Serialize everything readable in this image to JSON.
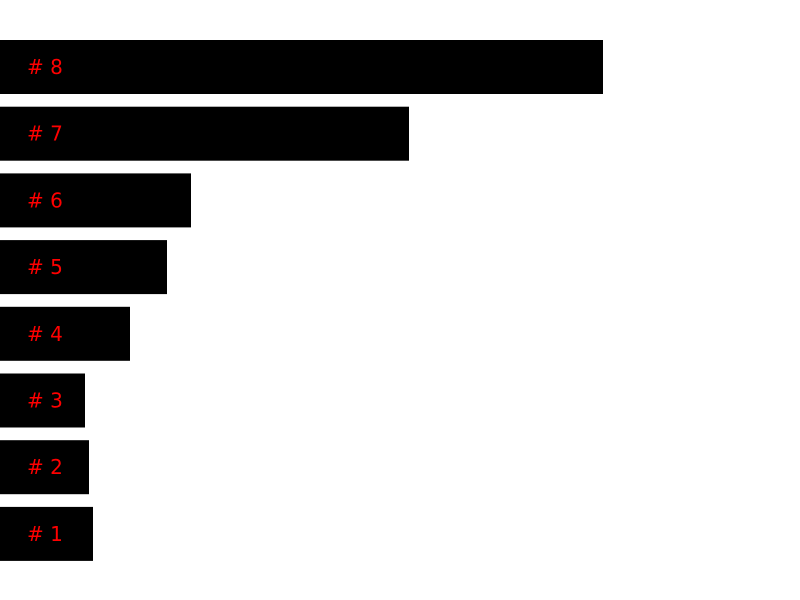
{
  "chart_data": {
    "type": "bar",
    "orientation": "horizontal",
    "categories": [
      "# 8",
      "# 7",
      "# 6",
      "# 5",
      "# 4",
      "# 3",
      "# 2",
      "# 1"
    ],
    "values": [
      603,
      409,
      191,
      167,
      130,
      85,
      89,
      93
    ],
    "title": "",
    "xlabel": "",
    "ylabel": "",
    "xlim": [
      0,
      800
    ],
    "grid": false,
    "legend": "none",
    "bar_color": "#000000",
    "label_color": "#ff0000",
    "background": "#ffffff"
  }
}
